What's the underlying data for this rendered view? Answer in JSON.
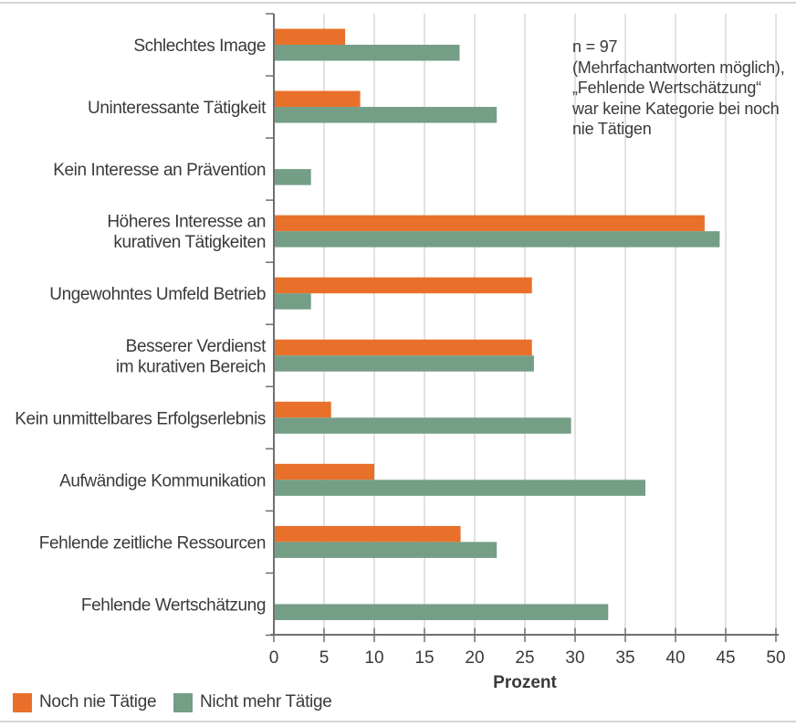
{
  "chart_data": {
    "type": "bar",
    "orientation": "horizontal",
    "xlabel": "Prozent",
    "xlim": [
      0,
      50
    ],
    "xticks": [
      0,
      5,
      10,
      15,
      20,
      25,
      30,
      35,
      40,
      45,
      50
    ],
    "grid": true,
    "legend_position": "bottom-left",
    "categories": [
      [
        "Schlechtes Image"
      ],
      [
        "Uninteressante Tätigkeit"
      ],
      [
        "Kein Interesse an Prävention"
      ],
      [
        "Höheres Interesse an",
        "kurativen Tätigkeiten"
      ],
      [
        "Ungewohntes Umfeld Betrieb"
      ],
      [
        "Besserer Verdienst",
        "im kurativen Bereich"
      ],
      [
        "Kein unmittelbares Erfolgserlebnis"
      ],
      [
        "Aufwändige Kommunikation"
      ],
      [
        "Fehlende zeitliche Ressourcen"
      ],
      [
        "Fehlende Wertschätzung"
      ]
    ],
    "series": [
      {
        "name": "Noch nie Tätige",
        "color": "#e9702a",
        "values": [
          7.1,
          8.6,
          null,
          42.9,
          25.7,
          25.7,
          5.7,
          10,
          18.6,
          null
        ]
      },
      {
        "name": "Nicht mehr Tätige",
        "color": "#749e86",
        "values": [
          18.5,
          22.2,
          3.7,
          44.4,
          3.7,
          25.9,
          29.6,
          37,
          22.2,
          33.3
        ]
      }
    ],
    "annotation_lines": [
      "n = 97",
      "(Mehrfachantworten möglich),",
      "„Fehlende Wertschätzung“",
      "war keine Kategorie bei noch",
      "nie Tätigen"
    ],
    "axis_color": "#6f6f6f",
    "grid_color": "#d2d2d2",
    "text_color": "#3a3a3a"
  }
}
